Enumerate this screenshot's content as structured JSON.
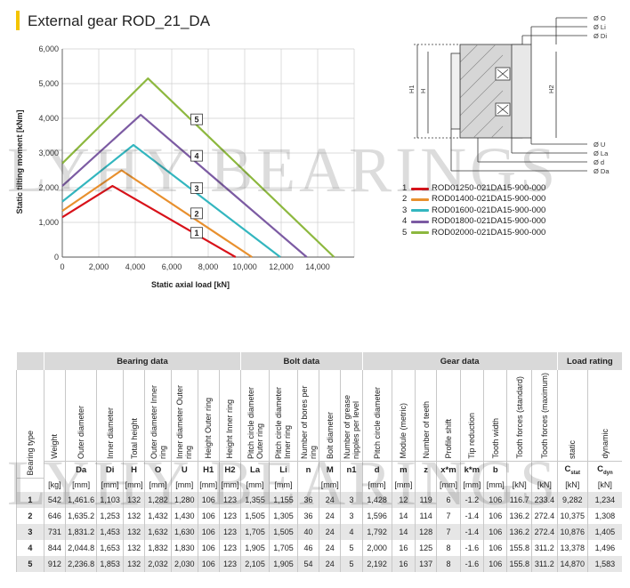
{
  "title": "External gear ROD_21_DA",
  "watermark": "LYHY BEARINGS",
  "chart_data": {
    "type": "line",
    "ylabel": "Static tilting moment [kNm]",
    "xlabel": "Static axial load [kN]",
    "xlim": [
      0,
      16000
    ],
    "ylim": [
      0,
      6000
    ],
    "x_ticks": [
      "0",
      "2,000",
      "4,000",
      "6,000",
      "8,000",
      "10,000",
      "12,000",
      "14,000"
    ],
    "y_ticks": [
      "0",
      "1,000",
      "2,000",
      "3,000",
      "4,000",
      "5,000",
      "6,000"
    ],
    "series": [
      {
        "name": "1",
        "color": "#d8121a",
        "x": [
          0,
          2750,
          9500
        ],
        "y": [
          1150,
          2050,
          0
        ]
      },
      {
        "name": "2",
        "color": "#e8902e",
        "x": [
          0,
          3250,
          10400
        ],
        "y": [
          1330,
          2500,
          0
        ]
      },
      {
        "name": "3",
        "color": "#33b6bf",
        "x": [
          0,
          3900,
          11950
        ],
        "y": [
          1600,
          3230,
          0
        ]
      },
      {
        "name": "4",
        "color": "#7c5ba3",
        "x": [
          0,
          4300,
          13400
        ],
        "y": [
          2050,
          4100,
          0
        ]
      },
      {
        "name": "5",
        "color": "#8db83f",
        "x": [
          0,
          4700,
          14900
        ],
        "y": [
          2700,
          5150,
          0
        ]
      }
    ],
    "label_boxes": [
      {
        "text": "1",
        "x": 7000,
        "y": 700
      },
      {
        "text": "2",
        "x": 7000,
        "y": 1260
      },
      {
        "text": "3",
        "x": 7000,
        "y": 1990
      },
      {
        "text": "4",
        "x": 7000,
        "y": 2920
      },
      {
        "text": "5",
        "x": 7000,
        "y": 3970
      }
    ]
  },
  "drawing_labels": {
    "top": [
      "Ø O",
      "Ø Li",
      "Ø Di"
    ],
    "bottom": [
      "Ø U",
      "Ø La",
      "Ø d",
      "Ø Da"
    ],
    "h1": "H1",
    "h": "H",
    "h2": "H2"
  },
  "legend": [
    {
      "num": "1",
      "label": "ROD01250-021DA15-900-000",
      "color": "#d8121a"
    },
    {
      "num": "2",
      "label": "ROD01400-021DA15-900-000",
      "color": "#e8902e"
    },
    {
      "num": "3",
      "label": "ROD01600-021DA15-900-000",
      "color": "#33b6bf"
    },
    {
      "num": "4",
      "label": "ROD01800-021DA15-900-000",
      "color": "#7c5ba3"
    },
    {
      "num": "5",
      "label": "ROD02000-021DA15-900-000",
      "color": "#8db83f"
    }
  ],
  "table": {
    "groups": [
      "Bearing data",
      "Bolt data",
      "Gear data",
      "Load rating"
    ],
    "bearing_type": "Bearing type",
    "columns": [
      {
        "name": "Weight",
        "sym": "",
        "unit": "[kg]"
      },
      {
        "name": "Outer diameter",
        "sym": "Da",
        "unit": "[mm]"
      },
      {
        "name": "Inner diameter",
        "sym": "Di",
        "unit": "[mm]"
      },
      {
        "name": "Total height",
        "sym": "H",
        "unit": "[mm]"
      },
      {
        "name": "Outer diameter Inner ring",
        "sym": "O",
        "unit": "[mm]"
      },
      {
        "name": "Inner diameter Outer ring",
        "sym": "U",
        "unit": "[mm]"
      },
      {
        "name": "Height Outer ring",
        "sym": "H1",
        "unit": "[mm]"
      },
      {
        "name": "Height Inner ring",
        "sym": "H2",
        "unit": "[mm]"
      },
      {
        "name": "Pitch circle diameter Outer ring",
        "sym": "La",
        "unit": "[mm]"
      },
      {
        "name": "Pitch circle diameter Inner ring",
        "sym": "Li",
        "unit": "[mm]"
      },
      {
        "name": "Number of bores per ring",
        "sym": "n",
        "unit": ""
      },
      {
        "name": "Bolt diameter",
        "sym": "M",
        "unit": "[mm]"
      },
      {
        "name": "Number of grease nipples per level",
        "sym": "n1",
        "unit": ""
      },
      {
        "name": "Pitch circle diameter",
        "sym": "d",
        "unit": "[mm]"
      },
      {
        "name": "Module (metric)",
        "sym": "m",
        "unit": "[mm]"
      },
      {
        "name": "Number of teeth",
        "sym": "z",
        "unit": ""
      },
      {
        "name": "Profile shift",
        "sym": "x*m",
        "unit": "[mm]"
      },
      {
        "name": "Tip reduction",
        "sym": "k*m",
        "unit": "[mm]"
      },
      {
        "name": "Tooth width",
        "sym": "b",
        "unit": "[mm]"
      },
      {
        "name": "Tooth forces (standard)",
        "sym": "",
        "unit": "[kN]"
      },
      {
        "name": "Tooth forces (maximum)",
        "sym": "",
        "unit": "[kN]"
      },
      {
        "name": "static",
        "sym": "C",
        "sub": "stat",
        "unit": "[kN]"
      },
      {
        "name": "dynamic",
        "sym": "C",
        "sub": "dyn",
        "unit": "[kN]"
      }
    ],
    "rows": [
      [
        "1",
        "542",
        "1,461.6",
        "1,103",
        "132",
        "1,282",
        "1,280",
        "106",
        "123",
        "1,355",
        "1,155",
        "36",
        "24",
        "3",
        "1,428",
        "12",
        "119",
        "6",
        "-1.2",
        "106",
        "116.7",
        "233.4",
        "9,282",
        "1,234"
      ],
      [
        "2",
        "646",
        "1,635.2",
        "1,253",
        "132",
        "1,432",
        "1,430",
        "106",
        "123",
        "1,505",
        "1,305",
        "36",
        "24",
        "3",
        "1,596",
        "14",
        "114",
        "7",
        "-1.4",
        "106",
        "136.2",
        "272.4",
        "10,375",
        "1,308"
      ],
      [
        "3",
        "731",
        "1,831.2",
        "1,453",
        "132",
        "1,632",
        "1,630",
        "106",
        "123",
        "1,705",
        "1,505",
        "40",
        "24",
        "4",
        "1,792",
        "14",
        "128",
        "7",
        "-1.4",
        "106",
        "136.2",
        "272.4",
        "10,876",
        "1,405"
      ],
      [
        "4",
        "844",
        "2,044.8",
        "1,653",
        "132",
        "1,832",
        "1,830",
        "106",
        "123",
        "1,905",
        "1,705",
        "46",
        "24",
        "5",
        "2,000",
        "16",
        "125",
        "8",
        "-1.6",
        "106",
        "155.8",
        "311.2",
        "13,378",
        "1,496"
      ],
      [
        "5",
        "912",
        "2,236.8",
        "1,853",
        "132",
        "2,032",
        "2,030",
        "106",
        "123",
        "2,105",
        "1,905",
        "54",
        "24",
        "5",
        "2,192",
        "16",
        "137",
        "8",
        "-1.6",
        "106",
        "155.8",
        "311.2",
        "14,870",
        "1,583"
      ]
    ]
  }
}
